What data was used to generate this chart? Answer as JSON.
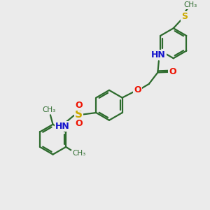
{
  "bg_color": "#ebebeb",
  "bond_color": "#2d6b2d",
  "N_color": "#1414cc",
  "O_color": "#ee1100",
  "S_sulfo_color": "#ccaa00",
  "S_thio_color": "#ccaa00",
  "lw": 1.6,
  "figsize": [
    3.0,
    3.0
  ],
  "dpi": 100,
  "xlim": [
    0,
    10
  ],
  "ylim": [
    0,
    10
  ]
}
